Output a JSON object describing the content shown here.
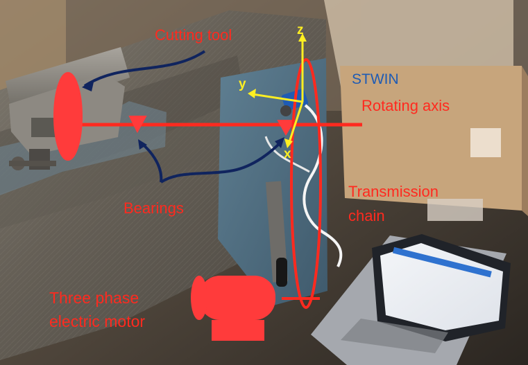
{
  "colors": {
    "annotation_red": "#ff2a1f",
    "pointer_navy": "#10245e",
    "axis_yellow": "#ffef22",
    "sensor_blue": "#1e5bb4",
    "shape_red": "#ff3b3b"
  },
  "labels": {
    "cutting_tool": "Cutting tool",
    "stwin": "STWIN",
    "rotating_axis": "Rotating axis",
    "bearings": "Bearings",
    "transmission_chain_line1": "Transmission",
    "transmission_chain_line2": "chain",
    "motor_line1": "Three phase",
    "motor_line2": "electric motor"
  },
  "axes": {
    "z": "z",
    "y": "y",
    "x": "x"
  },
  "icons": {
    "cutting_tool_marker": "red-ellipse-icon",
    "bearing_marker": "red-triangle-icon",
    "motor_marker": "red-cylinder-motor-icon",
    "sensor_marker": "sensor-board-icon",
    "laptop": "laptop-icon"
  }
}
